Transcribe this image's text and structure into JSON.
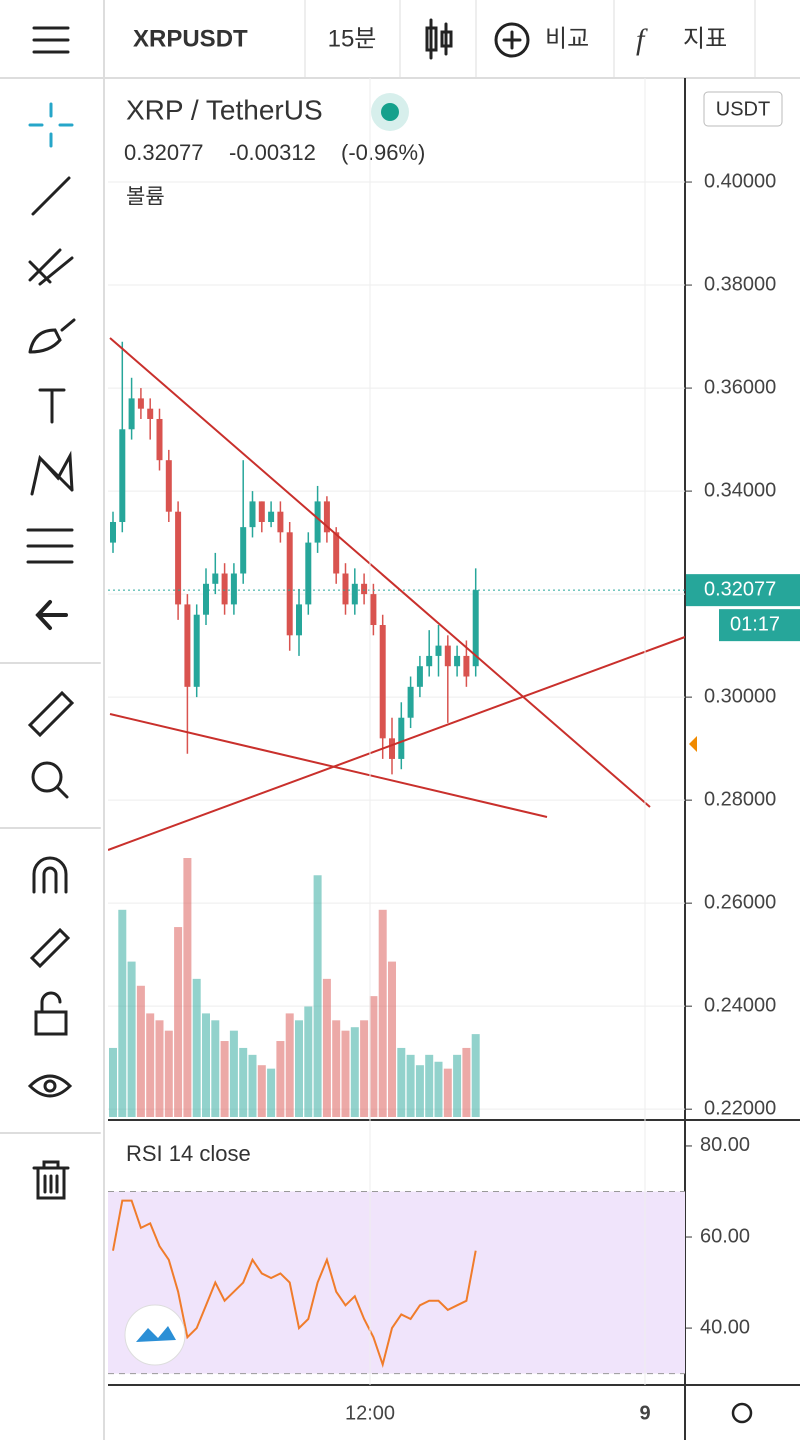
{
  "toolbar": {
    "symbol": "XRPUSDT",
    "interval": "15분",
    "compare": "비교",
    "indicators": "지표"
  },
  "legend": {
    "title": "XRP / TetherUS",
    "change": "-0.00312",
    "change_pct": "(-0.96%)",
    "volume_label": "볼륨"
  },
  "currency": "USDT",
  "x_tick_labels": [
    "12:00",
    "9"
  ],
  "chart_data": [
    {
      "type": "candlestick",
      "open": [
        0.33,
        0.334,
        0.352,
        0.358,
        0.356,
        0.354,
        0.346,
        0.336,
        0.318,
        0.302,
        0.316,
        0.322,
        0.324,
        0.318,
        0.324,
        0.333,
        0.338,
        0.334,
        0.336,
        0.332,
        0.312,
        0.318,
        0.33,
        0.338,
        0.332,
        0.324,
        0.318,
        0.322,
        0.32,
        0.314,
        0.292,
        0.288,
        0.296,
        0.302,
        0.306,
        0.308,
        0.31,
        0.306,
        0.308,
        0.306
      ],
      "high": [
        0.336,
        0.369,
        0.362,
        0.36,
        0.358,
        0.356,
        0.348,
        0.338,
        0.32,
        0.318,
        0.325,
        0.328,
        0.326,
        0.326,
        0.346,
        0.34,
        0.338,
        0.338,
        0.338,
        0.334,
        0.321,
        0.332,
        0.341,
        0.339,
        0.333,
        0.326,
        0.325,
        0.324,
        0.322,
        0.316,
        0.296,
        0.299,
        0.304,
        0.308,
        0.313,
        0.314,
        0.312,
        0.31,
        0.311,
        0.325
      ],
      "low": [
        0.328,
        0.332,
        0.35,
        0.354,
        0.35,
        0.344,
        0.334,
        0.315,
        0.289,
        0.3,
        0.314,
        0.32,
        0.316,
        0.316,
        0.322,
        0.331,
        0.332,
        0.333,
        0.33,
        0.309,
        0.308,
        0.316,
        0.328,
        0.33,
        0.322,
        0.316,
        0.316,
        0.318,
        0.312,
        0.288,
        0.285,
        0.286,
        0.294,
        0.3,
        0.304,
        0.304,
        0.295,
        0.304,
        0.302,
        0.304
      ],
      "close": [
        0.334,
        0.352,
        0.358,
        0.356,
        0.354,
        0.346,
        0.336,
        0.318,
        0.302,
        0.316,
        0.322,
        0.324,
        0.318,
        0.324,
        0.333,
        0.338,
        0.334,
        0.336,
        0.332,
        0.312,
        0.318,
        0.33,
        0.338,
        0.332,
        0.324,
        0.318,
        0.322,
        0.32,
        0.314,
        0.292,
        0.288,
        0.296,
        0.302,
        0.306,
        0.308,
        0.31,
        0.306,
        0.308,
        0.304,
        0.32077
      ],
      "up_color": "#26a69a",
      "down_color": "#d9534f",
      "countdown": "01:17",
      "ylim": [
        0.2179,
        0.4202
      ],
      "yticks": [
        {
          "value": 0.22,
          "label": "0.22000"
        },
        {
          "value": 0.24,
          "label": "0.24000"
        },
        {
          "value": 0.26,
          "label": "0.26000"
        },
        {
          "value": 0.28,
          "label": "0.28000"
        },
        {
          "value": 0.3,
          "label": "0.30000"
        },
        {
          "value": 0.32,
          "label": "0.32000"
        },
        {
          "value": 0.34,
          "label": "0.34000"
        },
        {
          "value": 0.36,
          "label": "0.36000"
        },
        {
          "value": 0.38,
          "label": "0.38000"
        },
        {
          "value": 0.4,
          "label": "0.40000"
        }
      ],
      "grid": true
    },
    {
      "type": "bar",
      "values": [
        20,
        60,
        45,
        38,
        30,
        28,
        25,
        55,
        75,
        40,
        30,
        28,
        22,
        25,
        20,
        18,
        15,
        14,
        22,
        30,
        28,
        32,
        70,
        40,
        28,
        25,
        26,
        28,
        35,
        60,
        45,
        20,
        18,
        15,
        18,
        16,
        14,
        18,
        20,
        24
      ]
    },
    {
      "type": "line",
      "title": "RSI 14 close",
      "color": "#f07c2b",
      "values": [
        57,
        68,
        68,
        62,
        63,
        58,
        55,
        48,
        38,
        40,
        45,
        50,
        46,
        48,
        50,
        55,
        52,
        51,
        52,
        50,
        40,
        42,
        50,
        55,
        48,
        45,
        47,
        42,
        38,
        32,
        40,
        43,
        42,
        45,
        46,
        46,
        44,
        45,
        46,
        57
      ],
      "bands": [
        30,
        70
      ],
      "band_color": "#f0e4fb",
      "ylim": [
        27.5,
        85.7
      ],
      "yticks": [
        {
          "value": 40,
          "label": "40.00"
        },
        {
          "value": 60,
          "label": "60.00"
        },
        {
          "value": 80,
          "label": "80.00"
        }
      ]
    }
  ]
}
